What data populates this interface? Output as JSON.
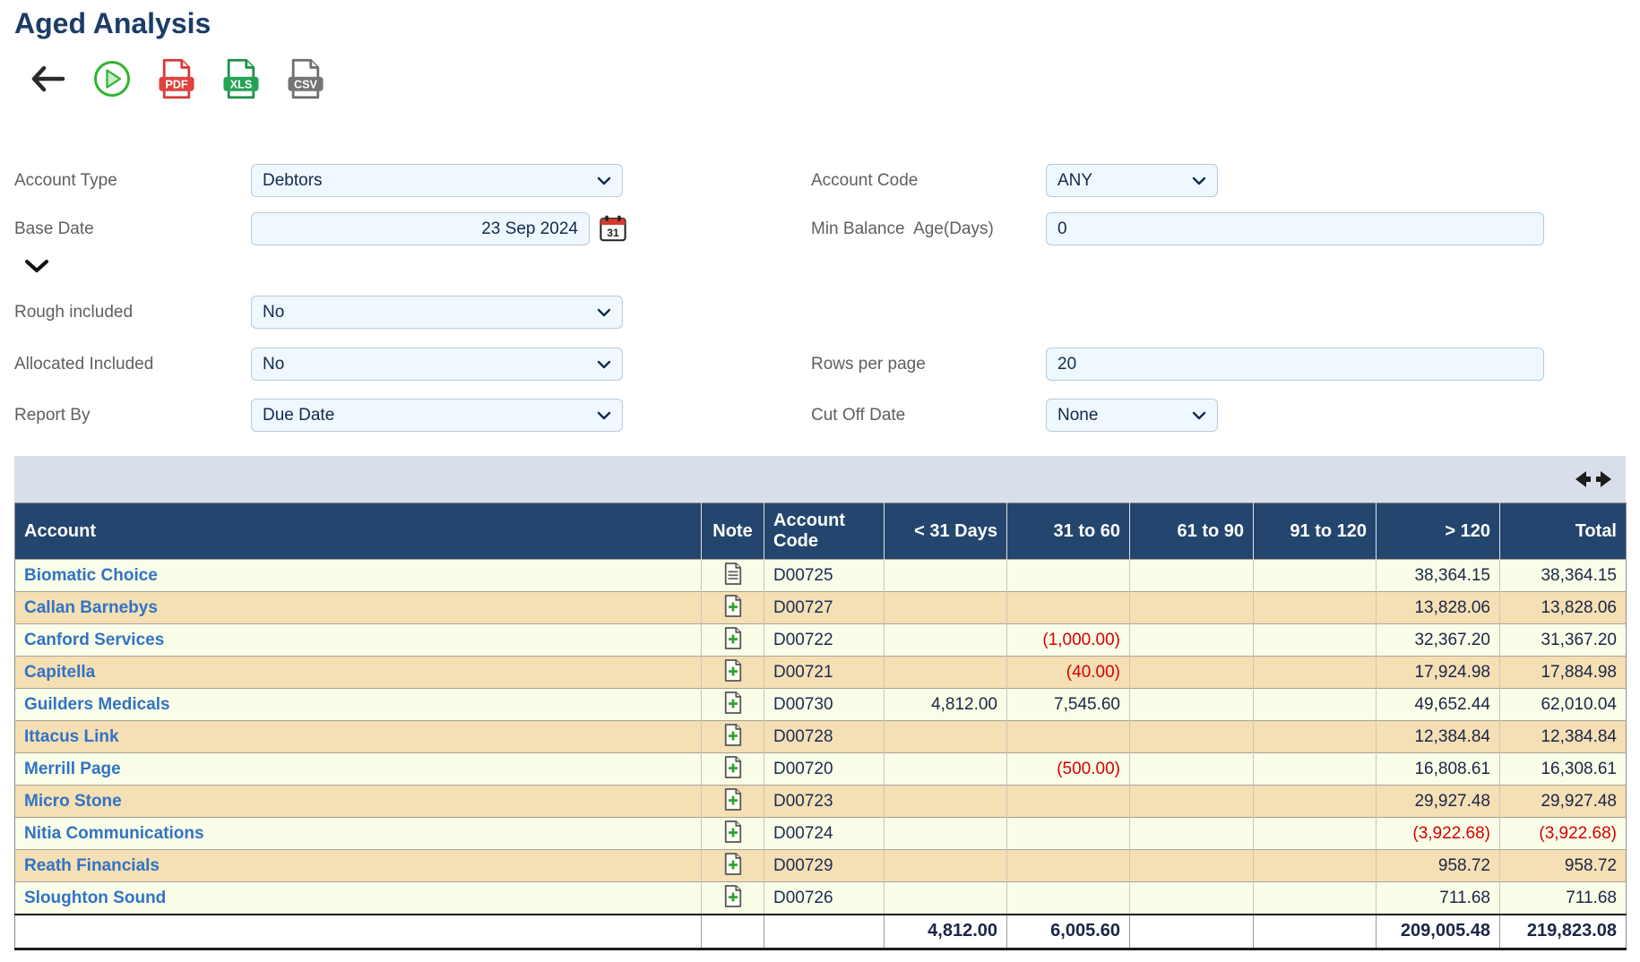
{
  "page": {
    "title": "Aged Analysis"
  },
  "toolbar": {
    "back": "back",
    "run": "run report",
    "pdf_label": "PDF",
    "xls_label": "XLS",
    "csv_label": "CSV"
  },
  "filters": {
    "account_type": {
      "label": "Account Type",
      "value": "Debtors"
    },
    "account_code": {
      "label": "Account Code",
      "value": "ANY"
    },
    "base_date": {
      "label": "Base Date",
      "value": "23 Sep 2024"
    },
    "min_balance": {
      "label": "Min Balance  Age(Days)",
      "value": "0"
    },
    "rough_included": {
      "label": "Rough included",
      "value": "No"
    },
    "allocated_included": {
      "label": "Allocated Included",
      "value": "No"
    },
    "rows_per_page": {
      "label": "Rows per page",
      "value": "20"
    },
    "report_by": {
      "label": "Report By",
      "value": "Due Date"
    },
    "cut_off_date": {
      "label": "Cut Off Date",
      "value": "None"
    }
  },
  "table": {
    "columns": [
      {
        "key": "account",
        "label": "Account",
        "align": "left"
      },
      {
        "key": "note",
        "label": "Note",
        "align": "center"
      },
      {
        "key": "code",
        "label": "Account Code",
        "align": "left"
      },
      {
        "key": "lt31",
        "label": "< 31 Days",
        "align": "right"
      },
      {
        "key": "d31_60",
        "label": "31 to 60",
        "align": "right"
      },
      {
        "key": "d61_90",
        "label": "61 to 90",
        "align": "right"
      },
      {
        "key": "d91_120",
        "label": "91 to 120",
        "align": "right"
      },
      {
        "key": "gt120",
        "label": "> 120",
        "align": "right"
      },
      {
        "key": "total",
        "label": "Total",
        "align": "right"
      }
    ],
    "rows": [
      {
        "account": "Biomatic Choice",
        "note": "view",
        "code": "D00725",
        "lt31": "",
        "d31_60": "",
        "d61_90": "",
        "d91_120": "",
        "gt120": "38,364.15",
        "total": "38,364.15"
      },
      {
        "account": "Callan Barnebys",
        "note": "add",
        "code": "D00727",
        "lt31": "",
        "d31_60": "",
        "d61_90": "",
        "d91_120": "",
        "gt120": "13,828.06",
        "total": "13,828.06"
      },
      {
        "account": "Canford Services",
        "note": "add",
        "code": "D00722",
        "lt31": "",
        "d31_60": "(1,000.00)",
        "d61_90": "",
        "d91_120": "",
        "gt120": "32,367.20",
        "total": "31,367.20"
      },
      {
        "account": "Capitella",
        "note": "add",
        "code": "D00721",
        "lt31": "",
        "d31_60": "(40.00)",
        "d61_90": "",
        "d91_120": "",
        "gt120": "17,924.98",
        "total": "17,884.98"
      },
      {
        "account": "Guilders Medicals",
        "note": "add",
        "code": "D00730",
        "lt31": "4,812.00",
        "d31_60": "7,545.60",
        "d61_90": "",
        "d91_120": "",
        "gt120": "49,652.44",
        "total": "62,010.04"
      },
      {
        "account": "Ittacus Link",
        "note": "add",
        "code": "D00728",
        "lt31": "",
        "d31_60": "",
        "d61_90": "",
        "d91_120": "",
        "gt120": "12,384.84",
        "total": "12,384.84"
      },
      {
        "account": "Merrill Page",
        "note": "add",
        "code": "D00720",
        "lt31": "",
        "d31_60": "(500.00)",
        "d61_90": "",
        "d91_120": "",
        "gt120": "16,808.61",
        "total": "16,308.61"
      },
      {
        "account": "Micro Stone",
        "note": "add",
        "code": "D00723",
        "lt31": "",
        "d31_60": "",
        "d61_90": "",
        "d91_120": "",
        "gt120": "29,927.48",
        "total": "29,927.48"
      },
      {
        "account": "Nitia Communications",
        "note": "add",
        "code": "D00724",
        "lt31": "",
        "d31_60": "",
        "d61_90": "",
        "d91_120": "",
        "gt120": "(3,922.68)",
        "total": "(3,922.68)"
      },
      {
        "account": "Reath Financials",
        "note": "add",
        "code": "D00729",
        "lt31": "",
        "d31_60": "",
        "d61_90": "",
        "d91_120": "",
        "gt120": "958.72",
        "total": "958.72"
      },
      {
        "account": "Sloughton Sound",
        "note": "add",
        "code": "D00726",
        "lt31": "",
        "d31_60": "",
        "d61_90": "",
        "d91_120": "",
        "gt120": "711.68",
        "total": "711.68"
      }
    ],
    "totals": {
      "lt31": "4,812.00",
      "d31_60": "6,005.60",
      "d61_90": "",
      "d91_120": "",
      "gt120": "209,005.48",
      "total": "219,823.08"
    }
  },
  "colors": {
    "title_navy": "#1c3c68",
    "header_navy": "#24456e",
    "band_gray": "#d8dfea",
    "row_odd": "#fafde8",
    "row_even": "#f5dfb4",
    "link_blue": "#3273c4",
    "negative_red": "#d40000",
    "field_bg": "#eff8fe",
    "pdf_red": "#e0433d",
    "xls_green": "#23a455",
    "csv_gray": "#757575",
    "run_green": "#2db52d"
  }
}
